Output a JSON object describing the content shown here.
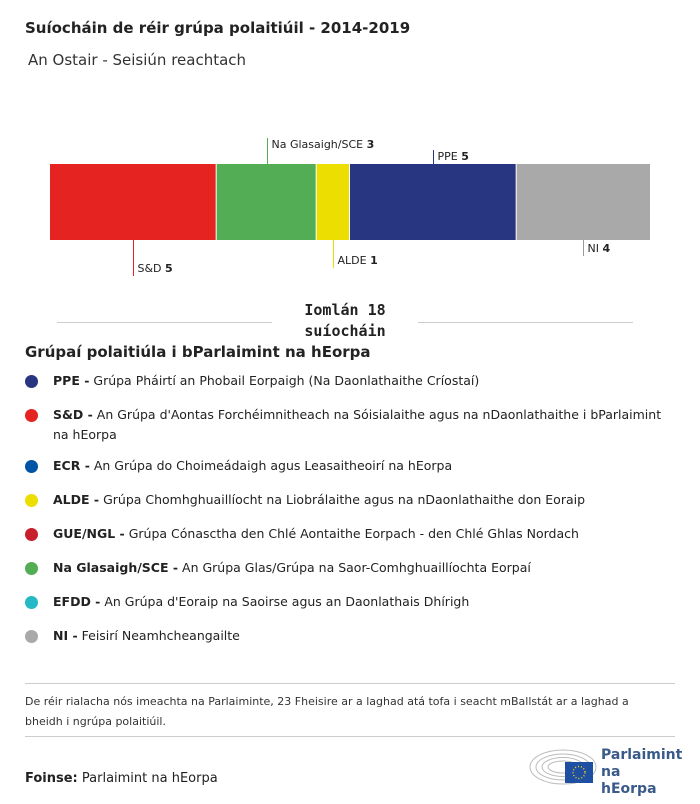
{
  "header": {
    "title": "Suíocháin de réir grúpa polaitiúil - 2014-2019",
    "subtitle": "An Ostair - Seisiún reachtach"
  },
  "chart_data": {
    "type": "bar",
    "orientation": "horizontal-stacked",
    "categories": [
      "S&D",
      "Na Glasaigh/SCE",
      "ALDE",
      "PPE",
      "NI"
    ],
    "values": [
      5,
      3,
      1,
      5,
      4
    ],
    "colors": [
      "#e52421",
      "#53ad55",
      "#ebde00",
      "#283580",
      "#a9a9a9"
    ],
    "label_side": [
      "below",
      "above",
      "below",
      "above",
      "below"
    ],
    "total": 18,
    "total_label_line1": "Iomlán 18",
    "total_label_line2": "suíocháin"
  },
  "legend": {
    "title": "Grúpaí polaitiúla i bParlaimint na hEorpa",
    "items": [
      {
        "abbr": "PPE -",
        "name": "Grúpa Pháirtí an Phobail Eorpaigh (Na Daonlathaithe Críostaí)",
        "color": "#283580"
      },
      {
        "abbr": "S&D -",
        "name": "An Grúpa d'Aontas Forchéimnitheach na Sóisialaithe agus na nDaonlathaithe i bParlaimint na hEorpa",
        "color": "#e52421"
      },
      {
        "abbr": "ECR -",
        "name": "An Grúpa do Choimeádaigh agus Leasaitheoirí na hEorpa",
        "color": "#0054a5"
      },
      {
        "abbr": "ALDE -",
        "name": "Grúpa Chomhghuaillíocht na Liobrálaithe agus na nDaonlathaithe don Eoraip",
        "color": "#ebde00"
      },
      {
        "abbr": "GUE/NGL -",
        "name": "Grúpa Cónasctha den Chlé Aontaithe Eorpach - den Chlé Ghlas Nordach",
        "color": "#c8202a"
      },
      {
        "abbr": "Na Glasaigh/SCE -",
        "name": "An Grúpa Glas/Grúpa na Saor-Comhghuaillíochta Eorpaí",
        "color": "#53ad55"
      },
      {
        "abbr": "EFDD -",
        "name": "An Grúpa d'Eoraip na Saoirse agus an Daonlathais Dhírigh",
        "color": "#24b9c4"
      },
      {
        "abbr": "NI -",
        "name": "Feisirí Neamhcheangailte",
        "color": "#a9a9a9"
      }
    ]
  },
  "footer": {
    "note": "De réir rialacha nós imeachta na Parlaiminte, 23 Fheisire ar a laghad atá tofa i seacht mBallstát ar a laghad a bheidh i ngrúpa polaitiúil.",
    "source_label": "Foinse:",
    "source_value": "Parlaimint na hEorpa",
    "logo_text": "Parlaimint na hEorpa"
  }
}
